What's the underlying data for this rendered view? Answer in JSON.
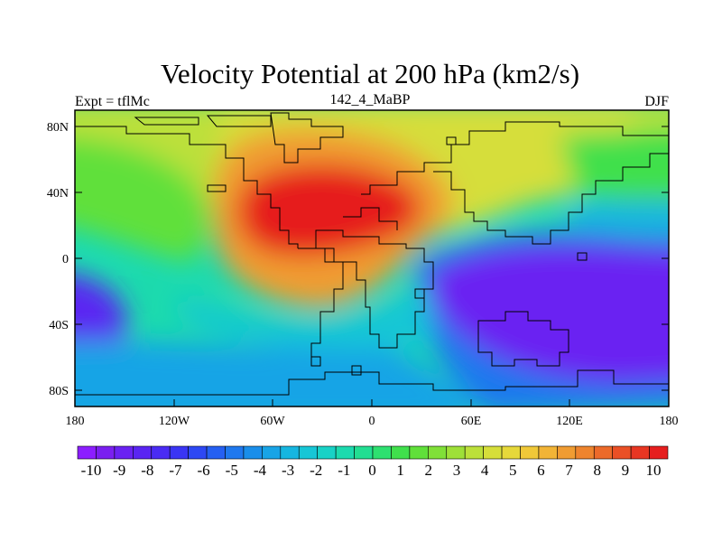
{
  "title": "Velocity Potential at 200 hPa (km2/s)",
  "subtitle_left": "Expt = tflMc",
  "subtitle_center": "142_4_MaBP",
  "subtitle_right": "DJF",
  "y_ticks": [
    "80N",
    "40N",
    "0",
    "40S",
    "80S"
  ],
  "x_ticks": [
    "180",
    "120W",
    "60W",
    "0",
    "60E",
    "120E",
    "180"
  ],
  "colorbar": {
    "labels": [
      "-10",
      "-9",
      "-8",
      "-7",
      "-6",
      "-5",
      "-4",
      "-3",
      "-2",
      "-1",
      "0",
      "1",
      "2",
      "3",
      "4",
      "5",
      "6",
      "7",
      "8",
      "9",
      "10"
    ],
    "colors": [
      "#8c1eff",
      "#7a1ff0",
      "#6a22f2",
      "#5a25f2",
      "#4a2bf4",
      "#3a35f4",
      "#2d48f4",
      "#2560f2",
      "#1f78ee",
      "#1a8eea",
      "#18a4e6",
      "#16b6e0",
      "#16c6d6",
      "#18d2c6",
      "#1cdaae",
      "#22de92",
      "#2ee070",
      "#40e04c",
      "#60e03a",
      "#80e038",
      "#9ee038",
      "#bce03a",
      "#d6de3a",
      "#e6d83a",
      "#f0c838",
      "#f2b436",
      "#f09c32",
      "#ee842e",
      "#ec6a2a",
      "#ea5026",
      "#e83622",
      "#e61e1e"
    ]
  },
  "field_colors": {
    "min": "#6a22f2",
    "low": "#3a35f4",
    "neg": "#1a8eea",
    "zero": "#16c6d6",
    "pos": "#60e03a",
    "mid": "#d6de3a",
    "high": "#f09c32",
    "max": "#e61e1e"
  }
}
